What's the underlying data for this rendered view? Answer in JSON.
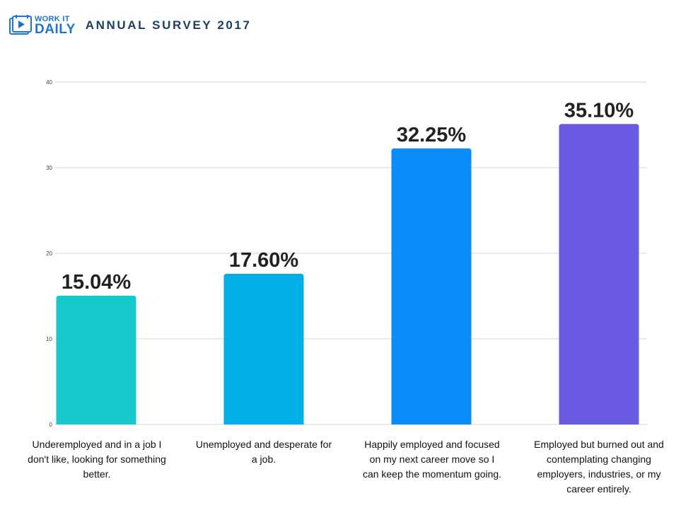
{
  "header": {
    "logo_line1": "WORK IT",
    "logo_line2": "DAILY",
    "title": "ANNUAL SURVEY 2017"
  },
  "chart_data": {
    "type": "bar",
    "title": "ANNUAL SURVEY 2017",
    "xlabel": "",
    "ylabel": "",
    "ylim": [
      0,
      40
    ],
    "yticks": [
      0,
      10,
      20,
      30,
      40
    ],
    "grid": true,
    "legend": "none",
    "categories": [
      "Underemployed and in a job I don't like, looking for something better.",
      "Unemployed and desperate for a job.",
      "Happily employed and focused on my next career move so I can keep the momentum going.",
      "Employed but burned out and contemplating changing employers, industries, or my career entirely."
    ],
    "values": [
      15.04,
      17.6,
      32.25,
      35.1
    ],
    "value_labels": [
      "15.04%",
      "17.60%",
      "32.25%",
      "35.10%"
    ],
    "colors": [
      "#15c8cb",
      "#00aee8",
      "#0a8cfa",
      "#6a5be2"
    ]
  }
}
